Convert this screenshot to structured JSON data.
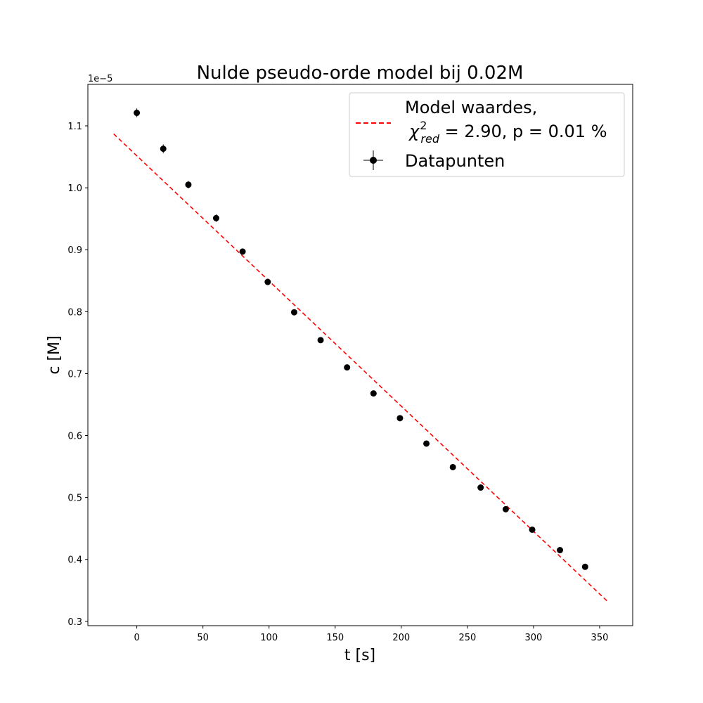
{
  "chart_data": {
    "type": "scatter",
    "title": "Nulde pseudo-orde model bij 0.02M",
    "xlabel": "t [s]",
    "ylabel": "c [M]",
    "offset_text": "1e−5",
    "y_scale_factor": 1e-05,
    "xlim": [
      -37,
      375
    ],
    "ylim": [
      0.293,
      1.167
    ],
    "xticks": [
      0,
      50,
      100,
      150,
      200,
      250,
      300,
      350
    ],
    "xtick_labels": [
      "0",
      "50",
      "100",
      "150",
      "200",
      "250",
      "300",
      "350"
    ],
    "yticks": [
      0.3,
      0.4,
      0.5,
      0.6,
      0.7,
      0.8,
      0.9,
      1.0,
      1.1
    ],
    "ytick_labels": [
      "0.3",
      "0.4",
      "0.5",
      "0.6",
      "0.7",
      "0.8",
      "0.9",
      "1.0",
      "1.1"
    ],
    "grid": false,
    "legend_position": "top-right",
    "series": [
      {
        "name": "Datapunten",
        "kind": "errorbar",
        "color": "#000000",
        "x": [
          0,
          20,
          39,
          60,
          80,
          99,
          119,
          139,
          159,
          179,
          199,
          219,
          239,
          260,
          279,
          299,
          320,
          339
        ],
        "y": [
          1.121,
          1.063,
          1.005,
          0.951,
          0.897,
          0.848,
          0.799,
          0.754,
          0.71,
          0.668,
          0.628,
          0.587,
          0.549,
          0.516,
          0.481,
          0.448,
          0.415,
          0.388
        ],
        "yerr": [
          0.007,
          0.007,
          0.006,
          0.006,
          0.005,
          0.005,
          0.004,
          0.004,
          0.004,
          0.003,
          0.003,
          0.003,
          0.003,
          0.003,
          0.003,
          0.002,
          0.002,
          0.002
        ],
        "xerr": [
          1,
          1,
          1,
          1,
          1,
          1,
          1,
          1,
          1,
          1,
          1,
          1,
          1,
          1,
          1,
          1,
          1,
          1
        ]
      },
      {
        "name": "Model waardes,",
        "name_line2_pre": "χ",
        "name_line2_sup": "2",
        "name_line2_sub": "red",
        "name_line2_post": " = 2.90, p = 0.01 %",
        "kind": "line",
        "style": "dashed",
        "color": "#ff0000",
        "x": [
          -17.5,
          356.5
        ],
        "y": [
          1.087,
          0.331
        ]
      }
    ]
  }
}
